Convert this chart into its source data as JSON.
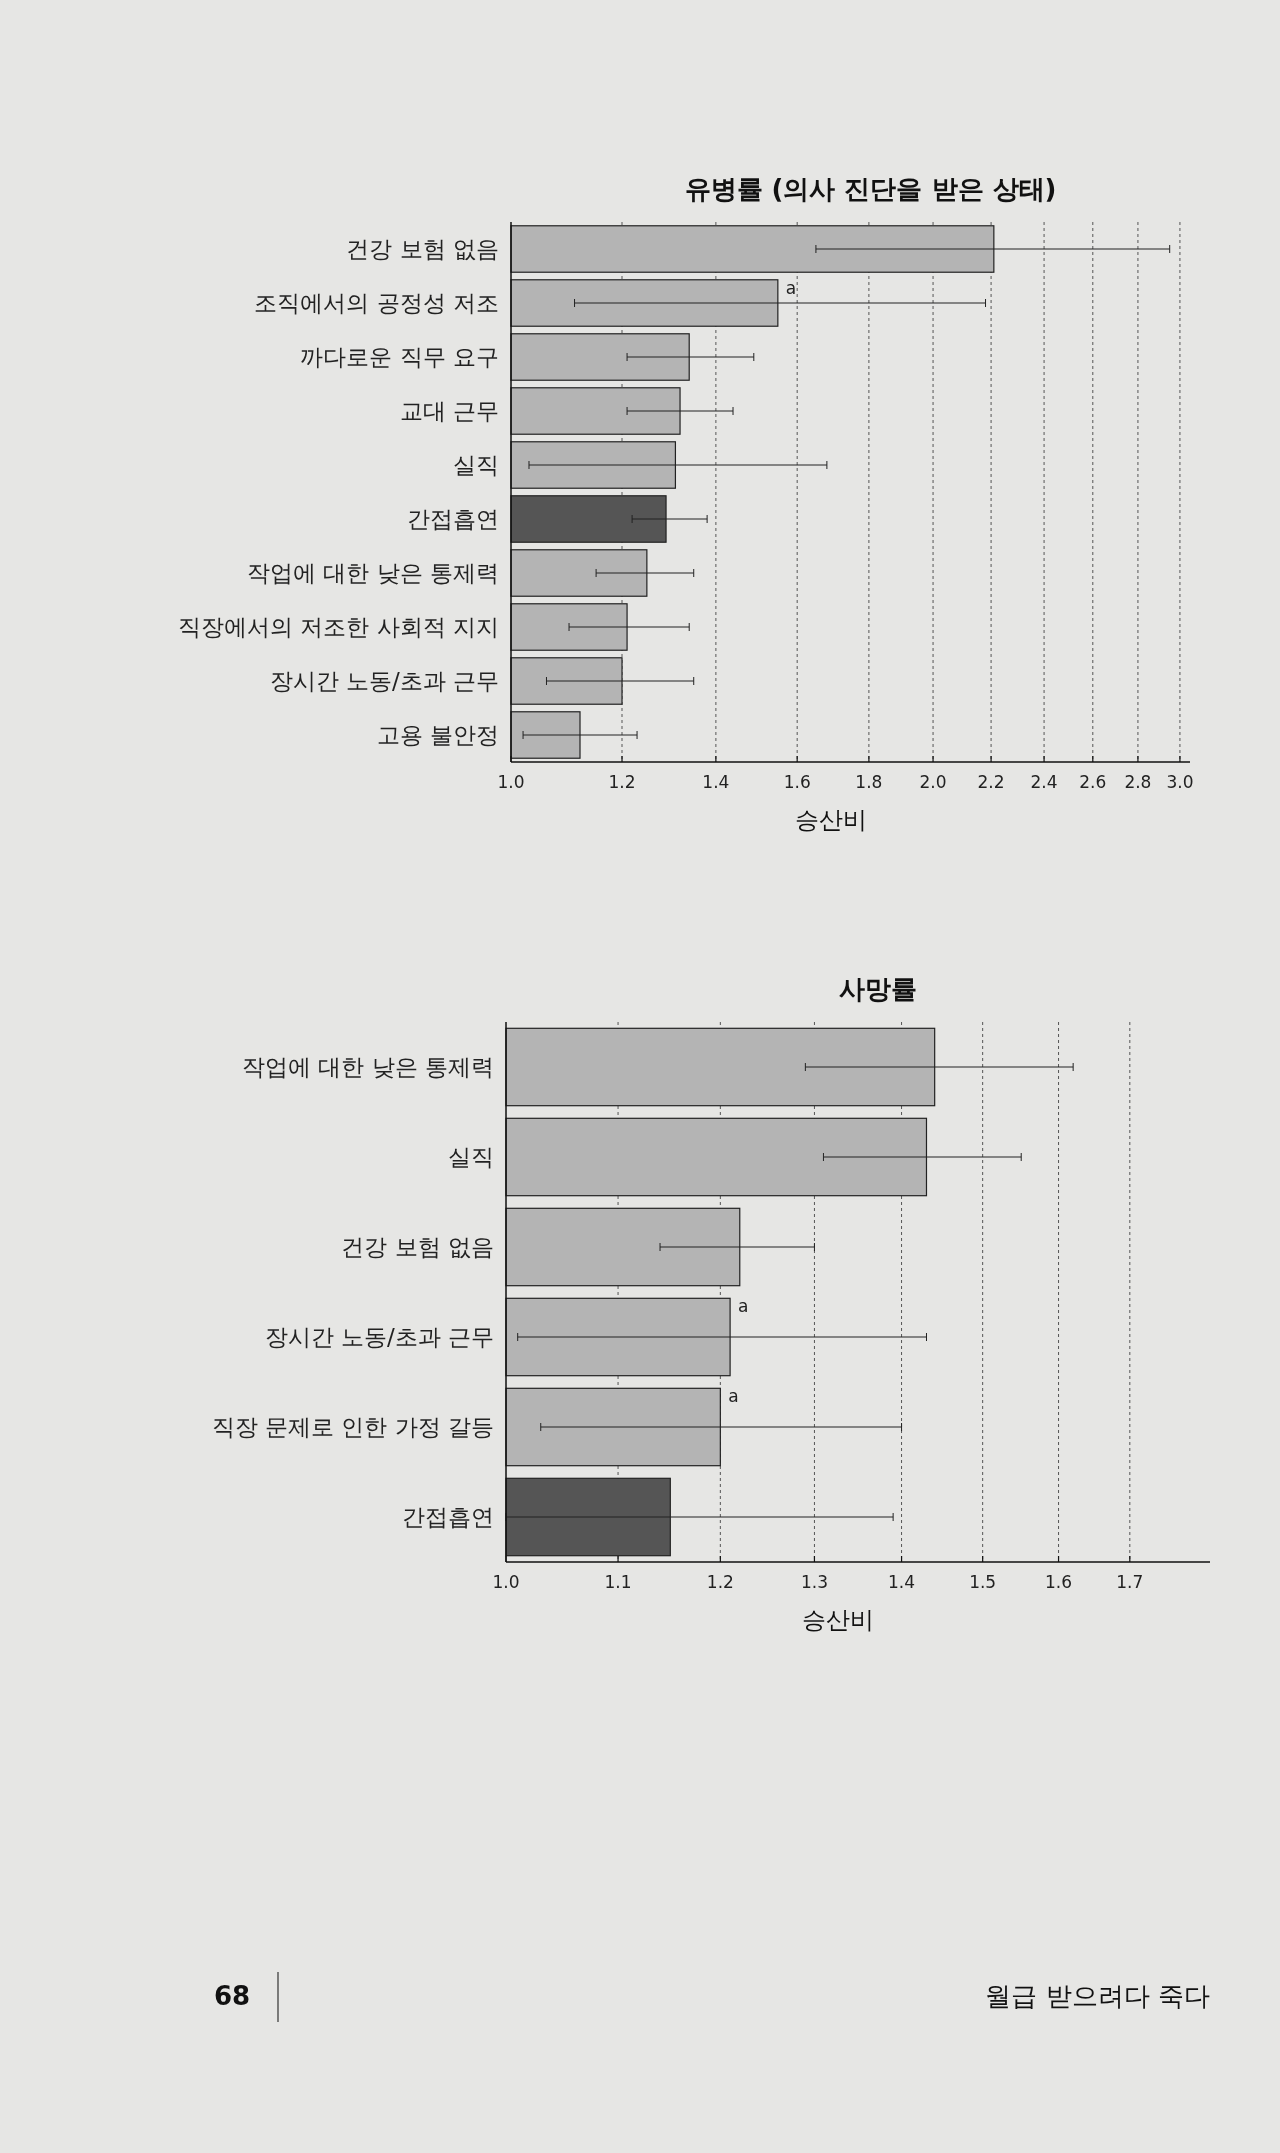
{
  "chart_data": [
    {
      "type": "bar",
      "orientation": "horizontal",
      "log": "x",
      "title": "유병률 (의사 진단을 받은 상태)",
      "xlabel": "승산비",
      "categories": [
        "건강 보험 없음",
        "조직에서의 공정성 저조",
        "까다로운 직무 요구",
        "교대 근무",
        "실직",
        "간접흡연",
        "작업에 대한 낮은 통제력",
        "직장에서의 저조한 사회적 지지",
        "장시간 노동/초과 근무",
        "고용 불안정"
      ],
      "values": [
        2.21,
        1.55,
        1.34,
        1.32,
        1.31,
        1.29,
        1.25,
        1.21,
        1.2,
        1.12
      ],
      "errors": [
        [
          1.65,
          2.95
        ],
        [
          1.11,
          2.18
        ],
        [
          1.21,
          1.49
        ],
        [
          1.21,
          1.44
        ],
        [
          1.03,
          1.68
        ],
        [
          1.22,
          1.38
        ],
        [
          1.15,
          1.35
        ],
        [
          1.1,
          1.34
        ],
        [
          1.06,
          1.35
        ],
        [
          1.02,
          1.23
        ]
      ],
      "colors": [
        "#b4b4b4",
        "#b4b4b4",
        "#b4b4b4",
        "#b4b4b4",
        "#b4b4b4",
        "#555555",
        "#b4b4b4",
        "#b4b4b4",
        "#b4b4b4",
        "#b4b4b4"
      ],
      "xlim": [
        1.0,
        3.05
      ],
      "xticks": [
        {
          "value": 1.0,
          "label": "1.0"
        },
        {
          "value": 1.2,
          "label": "1.2"
        },
        {
          "value": 1.4,
          "label": "1.4"
        },
        {
          "value": 1.6,
          "label": "1.6"
        },
        {
          "value": 1.8,
          "label": "1.8"
        },
        {
          "value": 2.0,
          "label": "2.0"
        },
        {
          "value": 2.2,
          "label": "2.2"
        },
        {
          "value": 2.4,
          "label": "2.4"
        },
        {
          "value": 2.6,
          "label": "2.6"
        },
        {
          "value": 2.8,
          "label": "2.8"
        },
        {
          "value": 3.0,
          "label": "3.0"
        }
      ],
      "grid": "x",
      "annotations": [
        {
          "text": "a",
          "x": 1.55,
          "y": "조직에서의 공정성 저조"
        }
      ]
    },
    {
      "type": "bar",
      "orientation": "horizontal",
      "log": "x",
      "title": "사망률",
      "xlabel": "승산비",
      "categories": [
        "작업에 대한 낮은 통제력",
        "실직",
        "건강 보험 없음",
        "장시간 노동/초과 근무",
        "직장 문제로 인한 가정 갈등",
        "간접흡연"
      ],
      "values": [
        1.44,
        1.43,
        1.22,
        1.21,
        1.2,
        1.15
      ],
      "errors": [
        [
          1.29,
          1.62
        ],
        [
          1.31,
          1.55
        ],
        [
          1.14,
          1.3
        ],
        [
          1.01,
          1.43
        ],
        [
          1.03,
          1.4
        ],
        [
          1.0,
          1.39
        ]
      ],
      "colors": [
        "#b4b4b4",
        "#b4b4b4",
        "#b4b4b4",
        "#b4b4b4",
        "#b4b4b4",
        "#555555"
      ],
      "xlim": [
        1.0,
        1.82
      ],
      "xticks": [
        {
          "value": 1.0,
          "label": "1.0"
        },
        {
          "value": 1.1,
          "label": "1.1"
        },
        {
          "value": 1.2,
          "label": "1.2"
        },
        {
          "value": 1.3,
          "label": "1.3"
        },
        {
          "value": 1.4,
          "label": "1.4"
        },
        {
          "value": 1.5,
          "label": "1.5"
        },
        {
          "value": 1.6,
          "label": "1.6"
        },
        {
          "value": 1.7,
          "label": "1.7"
        }
      ],
      "grid": "x",
      "annotations": [
        {
          "text": "a",
          "x": 1.21,
          "y": "장시간 노동/초과 근무"
        },
        {
          "text": "a",
          "x": 1.2,
          "y": "직장 문제로 인한 가정 갈등"
        },
        "68",
        "월급 받으려다 죽다"
      ]
    }
  ]
}
